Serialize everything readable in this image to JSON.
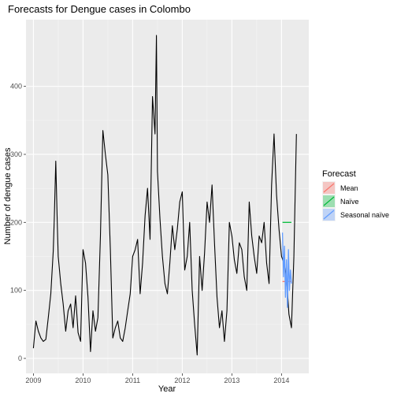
{
  "chart_data": {
    "type": "line",
    "title": "Forecasts for Dengue cases in Colombo",
    "xlabel": "Year",
    "ylabel": "Number of dengue cases",
    "xlim": [
      2008.85,
      2014.55
    ],
    "ylim": [
      -22,
      498
    ],
    "x_ticks": [
      2009,
      2010,
      2011,
      2012,
      2013,
      2014
    ],
    "x_tick_labels": [
      "2009",
      "2010",
      "2011",
      "2012",
      "2013",
      "2014"
    ],
    "y_ticks": [
      0,
      100,
      200,
      300,
      400
    ],
    "y_tick_labels": [
      "0",
      "100",
      "200",
      "300",
      "400"
    ],
    "grid": true,
    "legend": {
      "title": "Forecast",
      "position": "right",
      "entries": [
        {
          "label": "Mean",
          "color": "#F8766D"
        },
        {
          "label": "Naïve",
          "color": "#00BA38"
        },
        {
          "label": "Seasonal naïve",
          "color": "#619CFF"
        }
      ]
    },
    "series": [
      {
        "type": "line",
        "color": "#000000",
        "x": [
          2009.0,
          2009.05,
          2009.1,
          2009.15,
          2009.2,
          2009.25,
          2009.3,
          2009.35,
          2009.4,
          2009.42,
          2009.45,
          2009.48,
          2009.5,
          2009.55,
          2009.6,
          2009.65,
          2009.7,
          2009.75,
          2009.8,
          2009.85,
          2009.9,
          2009.95,
          2010.0,
          2010.05,
          2010.1,
          2010.15,
          2010.2,
          2010.25,
          2010.3,
          2010.35,
          2010.4,
          2010.45,
          2010.5,
          2010.55,
          2010.6,
          2010.65,
          2010.7,
          2010.75,
          2010.8,
          2010.85,
          2010.9,
          2010.95,
          2011.0,
          2011.05,
          2011.1,
          2011.15,
          2011.2,
          2011.25,
          2011.3,
          2011.35,
          2011.4,
          2011.45,
          2011.48,
          2011.5,
          2011.55,
          2011.6,
          2011.65,
          2011.7,
          2011.75,
          2011.8,
          2011.85,
          2011.9,
          2011.95,
          2012.0,
          2012.05,
          2012.1,
          2012.15,
          2012.2,
          2012.25,
          2012.3,
          2012.35,
          2012.4,
          2012.45,
          2012.5,
          2012.55,
          2012.6,
          2012.65,
          2012.7,
          2012.75,
          2012.8,
          2012.85,
          2012.9,
          2012.95,
          2013.0,
          2013.05,
          2013.1,
          2013.15,
          2013.2,
          2013.25,
          2013.3,
          2013.35,
          2013.4,
          2013.45,
          2013.5,
          2013.55,
          2013.6,
          2013.65,
          2013.7,
          2013.75,
          2013.8,
          2013.85,
          2013.9,
          2013.95,
          2014.0,
          2014.05,
          2014.1,
          2014.15,
          2014.2,
          2014.25,
          2014.3
        ],
        "y": [
          15,
          55,
          40,
          30,
          25,
          28,
          60,
          95,
          158,
          205,
          290,
          200,
          150,
          110,
          80,
          40,
          70,
          80,
          45,
          92,
          38,
          25,
          160,
          140,
          90,
          10,
          70,
          40,
          60,
          180,
          335,
          300,
          270,
          160,
          30,
          45,
          55,
          30,
          25,
          45,
          70,
          95,
          150,
          160,
          175,
          95,
          140,
          210,
          250,
          175,
          385,
          330,
          475,
          275,
          205,
          150,
          110,
          95,
          140,
          195,
          160,
          190,
          230,
          245,
          130,
          150,
          200,
          100,
          50,
          5,
          150,
          100,
          155,
          230,
          200,
          255,
          170,
          90,
          45,
          70,
          25,
          70,
          200,
          180,
          145,
          125,
          170,
          160,
          120,
          100,
          230,
          180,
          150,
          125,
          180,
          170,
          200,
          140,
          110,
          255,
          330,
          240,
          190,
          150,
          140,
          120,
          65,
          45,
          150,
          330
        ]
      },
      {
        "type": "line",
        "color": "#F8766D",
        "x": [
          2014.02,
          2014.2
        ],
        "y": [
          113,
          113
        ]
      },
      {
        "type": "line",
        "color": "#00BA38",
        "x": [
          2014.02,
          2014.2
        ],
        "y": [
          200,
          200
        ]
      },
      {
        "type": "line",
        "color": "#619CFF",
        "x": [
          2014.02,
          2014.04,
          2014.06,
          2014.08,
          2014.1,
          2014.12,
          2014.14,
          2014.16,
          2014.18,
          2014.2
        ],
        "y": [
          185,
          120,
          165,
          90,
          145,
          75,
          160,
          100,
          130,
          110
        ]
      }
    ]
  }
}
